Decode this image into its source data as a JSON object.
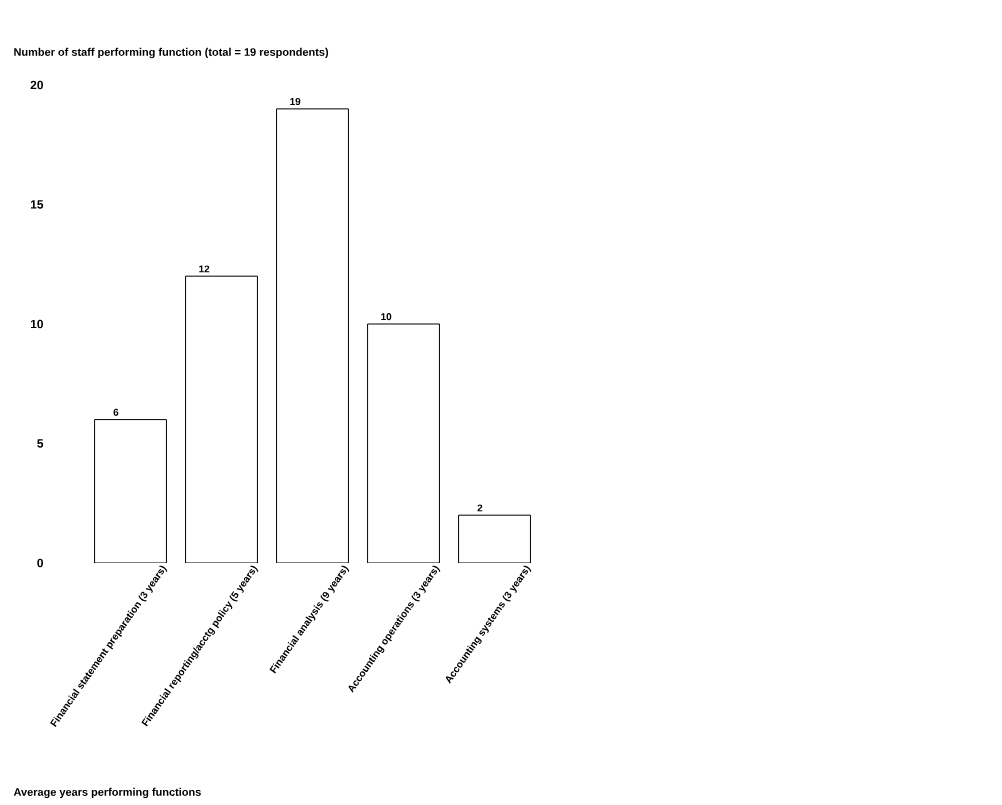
{
  "chart_data": {
    "type": "bar",
    "title": "Number of staff performing function (total = 19 respondents)",
    "annotations": [
      "Average years performing functions"
    ],
    "categories": [
      "Financial statement preparation (3 years)",
      "Financial reporting/acctg policy (5 years)",
      "Financial analysis (9 years)",
      "Accounting operations (3 years)",
      "Accounting systems (3 years)"
    ],
    "values": [
      6,
      12,
      19,
      10,
      2
    ],
    "color": "#ffffff",
    "ylim": [
      0,
      20
    ],
    "yticks": [
      0,
      5,
      10,
      15,
      20
    ],
    "data_labels": true
  }
}
